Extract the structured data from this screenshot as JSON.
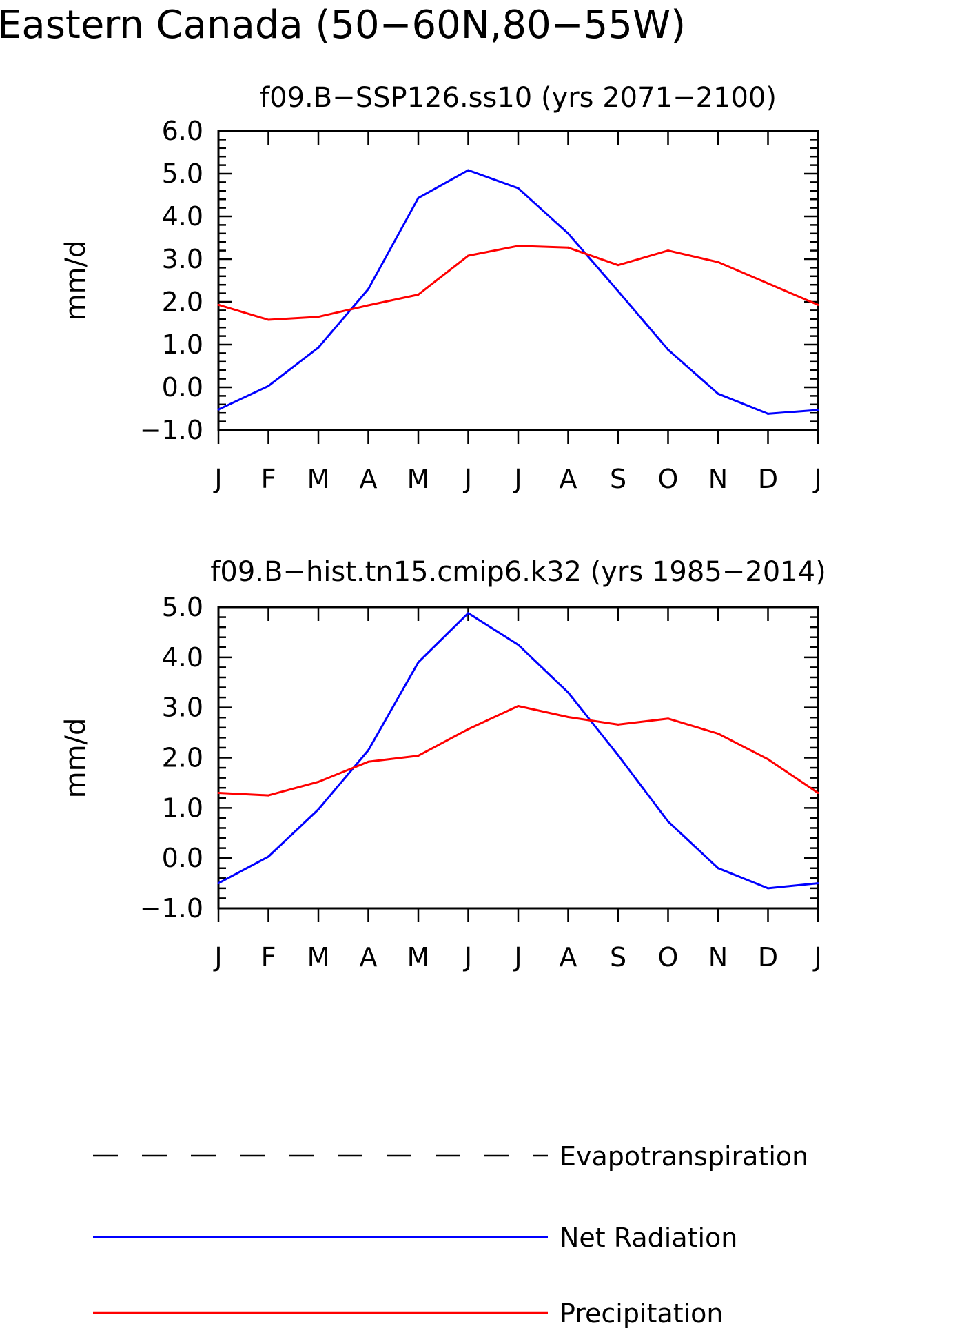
{
  "title": "Eastern Canada (50−60N,80−55W)",
  "legend": [
    {
      "label": "Evapotranspiration",
      "color": "#000000",
      "style": "dashed"
    },
    {
      "label": "Net Radiation",
      "color": "#0000ff",
      "style": "solid"
    },
    {
      "label": "Precipitation",
      "color": "#ff0000",
      "style": "solid"
    }
  ],
  "chart_data": [
    {
      "type": "line",
      "title": "f09.B−SSP126.ss10 (yrs 2071−2100)",
      "xlabel": "",
      "ylabel": "mm/d",
      "categories": [
        "J",
        "F",
        "M",
        "A",
        "M",
        "J",
        "J",
        "A",
        "S",
        "O",
        "N",
        "D",
        "J"
      ],
      "ylim": [
        -1.0,
        6.0
      ],
      "yticks": [
        "6.0",
        "5.0",
        "4.0",
        "3.0",
        "2.0",
        "1.0",
        "0.0",
        "−1.0"
      ],
      "grid": false,
      "series": [
        {
          "name": "Net Radiation",
          "color": "#0000ff",
          "values": [
            -0.52,
            0.03,
            0.93,
            2.3,
            4.43,
            5.08,
            4.66,
            3.6,
            2.25,
            0.88,
            -0.15,
            -0.62,
            -0.53
          ]
        },
        {
          "name": "Precipitation",
          "color": "#ff0000",
          "values": [
            1.93,
            1.58,
            1.65,
            1.92,
            2.17,
            3.08,
            3.31,
            3.27,
            2.86,
            3.2,
            2.93,
            2.43,
            1.93
          ]
        }
      ]
    },
    {
      "type": "line",
      "title": "f09.B−hist.tn15.cmip6.k32 (yrs 1985−2014)",
      "xlabel": "",
      "ylabel": "mm/d",
      "categories": [
        "J",
        "F",
        "M",
        "A",
        "M",
        "J",
        "J",
        "A",
        "S",
        "O",
        "N",
        "D",
        "J"
      ],
      "ylim": [
        -1.0,
        5.0
      ],
      "yticks": [
        "5.0",
        "4.0",
        "3.0",
        "2.0",
        "1.0",
        "0.0",
        "−1.0"
      ],
      "grid": false,
      "series": [
        {
          "name": "Net Radiation",
          "color": "#0000ff",
          "values": [
            -0.5,
            0.03,
            0.97,
            2.15,
            3.9,
            4.88,
            4.25,
            3.3,
            2.05,
            0.73,
            -0.2,
            -0.6,
            -0.5
          ]
        },
        {
          "name": "Precipitation",
          "color": "#ff0000",
          "values": [
            1.3,
            1.25,
            1.52,
            1.92,
            2.04,
            2.57,
            3.03,
            2.81,
            2.66,
            2.78,
            2.48,
            1.97,
            1.3
          ]
        }
      ]
    }
  ]
}
